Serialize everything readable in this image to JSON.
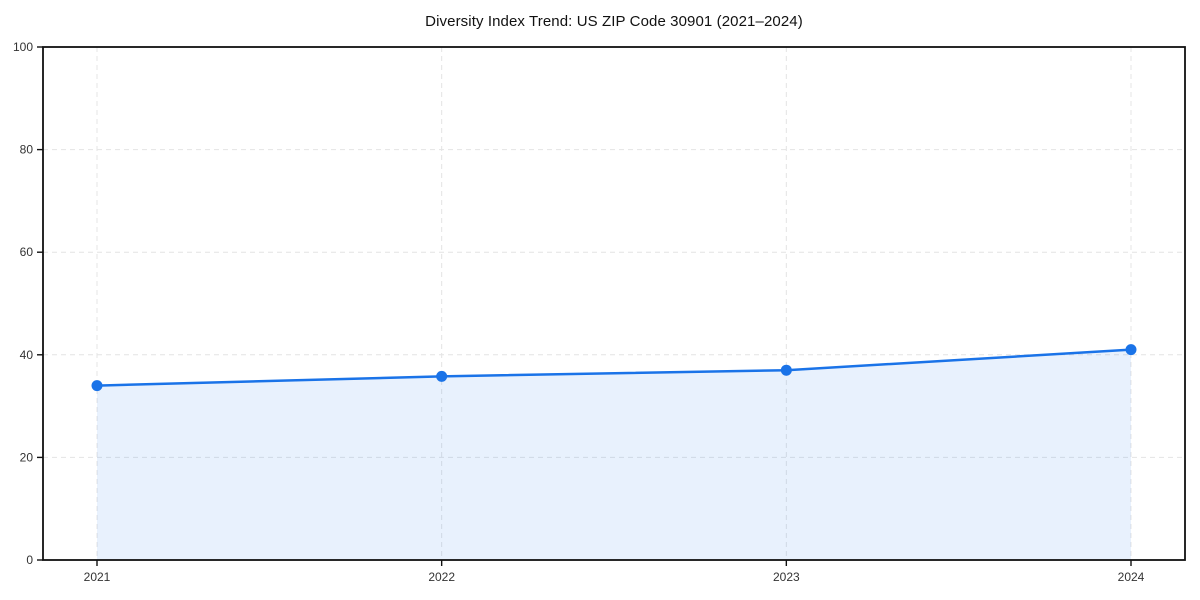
{
  "page": {
    "background": "#ffffff"
  },
  "chart_data": {
    "type": "area",
    "title": "Diversity Index Trend: US ZIP Code 30901 (2021–2024)",
    "x": [
      2021,
      2022,
      2023,
      2024
    ],
    "xticklabels": [
      "2021",
      "2022",
      "2023",
      "2024"
    ],
    "series": [
      {
        "name": "Diversity Index",
        "values": [
          34,
          35.8,
          37,
          41
        ]
      }
    ],
    "xlabel": "",
    "ylabel": "",
    "ylim": [
      0,
      100
    ],
    "yticks": [
      0,
      20,
      40,
      60,
      80,
      100
    ],
    "grid": true,
    "grid_style": "dashed",
    "legend": "none",
    "marker": "circle",
    "colors": {
      "line": "#1a73e8",
      "fill": "rgba(26,115,232,0.10)",
      "grid": "#e4e4e4",
      "axis": "#111111",
      "tick_label": "#333333",
      "title": "#111111"
    }
  }
}
